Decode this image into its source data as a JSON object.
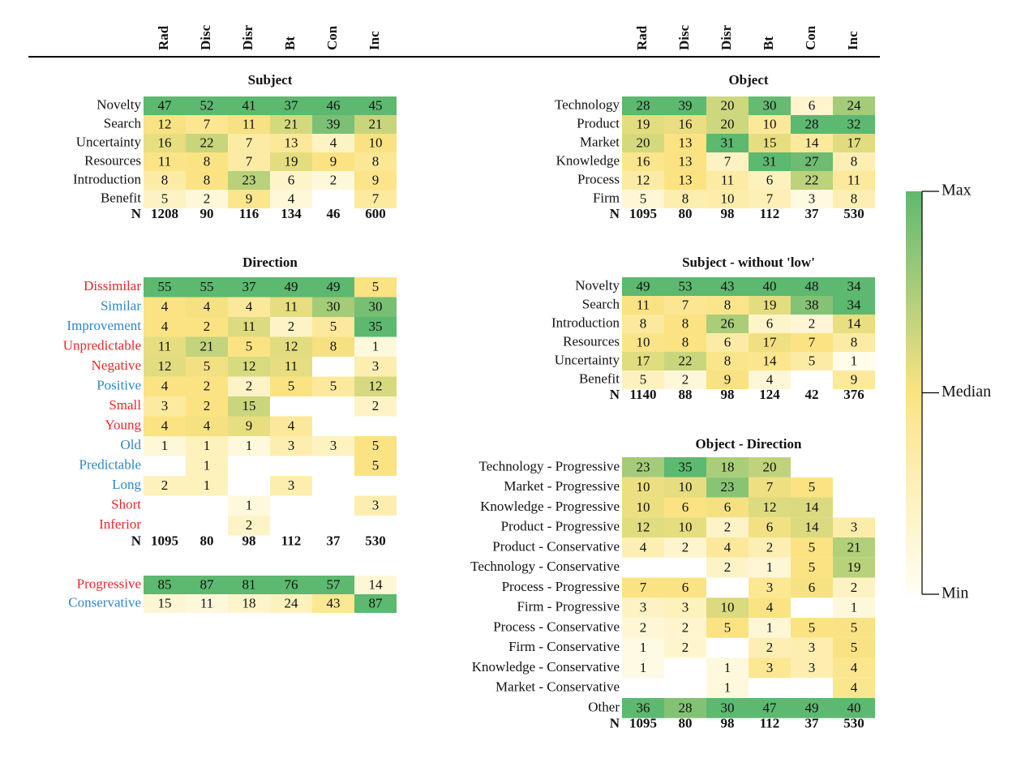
{
  "columns": [
    "Rad",
    "Disc",
    "Disr",
    "Bt",
    "Con",
    "Inc"
  ],
  "n_label": "N",
  "panels": [
    {
      "title": "Subject",
      "rows": [
        {
          "label": "Novelty",
          "values": [
            47,
            52,
            41,
            37,
            46,
            45
          ]
        },
        {
          "label": "Search",
          "values": [
            12,
            7,
            11,
            21,
            39,
            21
          ]
        },
        {
          "label": "Uncertainty",
          "values": [
            16,
            22,
            7,
            13,
            4,
            10
          ]
        },
        {
          "label": "Resources",
          "values": [
            11,
            8,
            7,
            19,
            9,
            8
          ]
        },
        {
          "label": "Introduction",
          "values": [
            8,
            8,
            23,
            6,
            2,
            9
          ]
        },
        {
          "label": "Benefit",
          "values": [
            5,
            2,
            9,
            4,
            null,
            7
          ]
        }
      ],
      "n": [
        1208,
        90,
        116,
        134,
        46,
        600
      ]
    },
    {
      "title": "Direction",
      "rows": [
        {
          "label": "Dissimilar",
          "color": "#e8262a",
          "values": [
            55,
            55,
            37,
            49,
            49,
            5
          ]
        },
        {
          "label": "Similar",
          "color": "#2e86c8",
          "values": [
            4,
            4,
            4,
            11,
            30,
            30
          ]
        },
        {
          "label": "Improvement",
          "color": "#2e86c8",
          "values": [
            4,
            2,
            11,
            2,
            5,
            35
          ]
        },
        {
          "label": "Unpredictable",
          "color": "#e8262a",
          "values": [
            11,
            21,
            5,
            12,
            8,
            1
          ]
        },
        {
          "label": "Negative",
          "color": "#e8262a",
          "values": [
            12,
            5,
            12,
            11,
            null,
            3
          ]
        },
        {
          "label": "Positive",
          "color": "#2e86c8",
          "values": [
            4,
            2,
            2,
            5,
            5,
            12
          ]
        },
        {
          "label": "Small",
          "color": "#e8262a",
          "values": [
            3,
            2,
            15,
            null,
            null,
            2
          ]
        },
        {
          "label": "Young",
          "color": "#e8262a",
          "values": [
            4,
            4,
            9,
            4,
            null,
            null
          ]
        },
        {
          "label": "Old",
          "color": "#2e86c8",
          "values": [
            1,
            1,
            1,
            3,
            3,
            5
          ]
        },
        {
          "label": "Predictable",
          "color": "#2e86c8",
          "values": [
            null,
            1,
            null,
            null,
            null,
            5
          ]
        },
        {
          "label": "Long",
          "color": "#2e86c8",
          "values": [
            2,
            1,
            null,
            3,
            null,
            null
          ]
        },
        {
          "label": "Short",
          "color": "#e8262a",
          "values": [
            null,
            null,
            1,
            null,
            null,
            3
          ]
        },
        {
          "label": "Inferior",
          "color": "#e8262a",
          "values": [
            null,
            null,
            2,
            null,
            null,
            null
          ]
        }
      ],
      "n": [
        1095,
        80,
        98,
        112,
        37,
        530
      ]
    },
    {
      "rows": [
        {
          "label": "Progressive",
          "color": "#e8262a",
          "values": [
            85,
            87,
            81,
            76,
            57,
            14
          ]
        },
        {
          "label": "Conservative",
          "color": "#2e86c8",
          "values": [
            15,
            11,
            18,
            24,
            43,
            87
          ]
        }
      ]
    },
    {
      "title": "Object",
      "rows": [
        {
          "label": "Technology",
          "values": [
            28,
            39,
            20,
            30,
            6,
            24
          ]
        },
        {
          "label": "Product",
          "values": [
            19,
            16,
            20,
            10,
            28,
            32
          ]
        },
        {
          "label": "Market",
          "values": [
            20,
            13,
            31,
            15,
            14,
            17
          ]
        },
        {
          "label": "Knowledge",
          "values": [
            16,
            13,
            7,
            31,
            27,
            8
          ]
        },
        {
          "label": "Process",
          "values": [
            12,
            13,
            11,
            6,
            22,
            11
          ]
        },
        {
          "label": "Firm",
          "values": [
            5,
            8,
            10,
            7,
            3,
            8
          ]
        }
      ],
      "n": [
        1095,
        80,
        98,
        112,
        37,
        530
      ]
    },
    {
      "title": "Subject - without 'low'",
      "rows": [
        {
          "label": "Novelty",
          "values": [
            49,
            53,
            43,
            40,
            48,
            34
          ]
        },
        {
          "label": "Search",
          "values": [
            11,
            7,
            8,
            19,
            38,
            34
          ]
        },
        {
          "label": "Introduction",
          "values": [
            8,
            8,
            26,
            6,
            2,
            14
          ]
        },
        {
          "label": "Resources",
          "values": [
            10,
            8,
            6,
            17,
            7,
            8
          ]
        },
        {
          "label": "Uncertainty",
          "values": [
            17,
            22,
            8,
            14,
            5,
            1
          ]
        },
        {
          "label": "Benefit",
          "values": [
            5,
            2,
            9,
            4,
            null,
            9
          ]
        }
      ],
      "n": [
        1140,
        88,
        98,
        124,
        42,
        376
      ]
    },
    {
      "title": "Object - Direction",
      "rows": [
        {
          "label": "Technology - Progressive",
          "values": [
            23,
            35,
            18,
            20,
            null,
            null
          ]
        },
        {
          "label": "Market - Progressive",
          "values": [
            10,
            10,
            23,
            7,
            5,
            null
          ]
        },
        {
          "label": "Knowledge - Progressive",
          "values": [
            10,
            6,
            6,
            12,
            14,
            null
          ]
        },
        {
          "label": "Product - Progressive",
          "values": [
            12,
            10,
            2,
            6,
            14,
            3
          ]
        },
        {
          "label": "Product - Conservative",
          "values": [
            4,
            2,
            4,
            2,
            5,
            21
          ]
        },
        {
          "label": "Technology - Conservative",
          "values": [
            null,
            null,
            2,
            1,
            5,
            19
          ]
        },
        {
          "label": "Process - Progressive",
          "values": [
            7,
            6,
            null,
            3,
            6,
            2
          ]
        },
        {
          "label": "Firm - Progressive",
          "values": [
            3,
            3,
            10,
            4,
            null,
            1
          ]
        },
        {
          "label": "Process - Conservative",
          "values": [
            2,
            2,
            5,
            1,
            5,
            5
          ]
        },
        {
          "label": "Firm - Conservative",
          "values": [
            1,
            2,
            null,
            2,
            3,
            5
          ]
        },
        {
          "label": "Knowledge - Conservative",
          "values": [
            1,
            null,
            1,
            3,
            3,
            4
          ]
        },
        {
          "label": "Market - Conservative",
          "values": [
            null,
            null,
            1,
            null,
            null,
            4
          ]
        },
        {
          "label": "Other",
          "values": [
            36,
            28,
            30,
            47,
            49,
            40
          ]
        }
      ],
      "n": [
        1095,
        80,
        98,
        112,
        37,
        530
      ]
    }
  ],
  "legend": {
    "labels": [
      "Max",
      "Median",
      "Min"
    ],
    "colors": {
      "max": "#5db870",
      "median": "#fbe383",
      "min": "#fffef4"
    }
  }
}
